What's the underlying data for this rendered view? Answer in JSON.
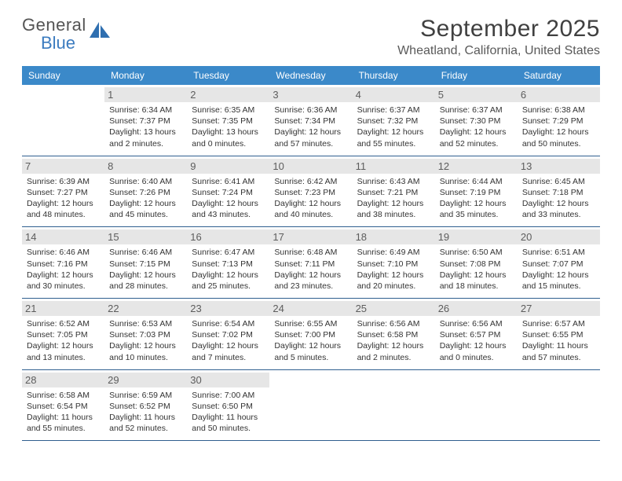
{
  "brand": {
    "line1": "General",
    "line2": "Blue"
  },
  "header": {
    "title": "September 2025",
    "location": "Wheatland, California, United States"
  },
  "theme": {
    "header_bg": "#3b89c9",
    "header_text": "#ffffff",
    "daynum_bg": "#e6e6e6",
    "week_border": "#2f5f8f",
    "sail_color": "#2f6fb0"
  },
  "day_names": [
    "Sunday",
    "Monday",
    "Tuesday",
    "Wednesday",
    "Thursday",
    "Friday",
    "Saturday"
  ],
  "weeks": [
    [
      null,
      {
        "n": "1",
        "sr": "6:34 AM",
        "ss": "7:37 PM",
        "dl": "13 hours and 2 minutes."
      },
      {
        "n": "2",
        "sr": "6:35 AM",
        "ss": "7:35 PM",
        "dl": "13 hours and 0 minutes."
      },
      {
        "n": "3",
        "sr": "6:36 AM",
        "ss": "7:34 PM",
        "dl": "12 hours and 57 minutes."
      },
      {
        "n": "4",
        "sr": "6:37 AM",
        "ss": "7:32 PM",
        "dl": "12 hours and 55 minutes."
      },
      {
        "n": "5",
        "sr": "6:37 AM",
        "ss": "7:30 PM",
        "dl": "12 hours and 52 minutes."
      },
      {
        "n": "6",
        "sr": "6:38 AM",
        "ss": "7:29 PM",
        "dl": "12 hours and 50 minutes."
      }
    ],
    [
      {
        "n": "7",
        "sr": "6:39 AM",
        "ss": "7:27 PM",
        "dl": "12 hours and 48 minutes."
      },
      {
        "n": "8",
        "sr": "6:40 AM",
        "ss": "7:26 PM",
        "dl": "12 hours and 45 minutes."
      },
      {
        "n": "9",
        "sr": "6:41 AM",
        "ss": "7:24 PM",
        "dl": "12 hours and 43 minutes."
      },
      {
        "n": "10",
        "sr": "6:42 AM",
        "ss": "7:23 PM",
        "dl": "12 hours and 40 minutes."
      },
      {
        "n": "11",
        "sr": "6:43 AM",
        "ss": "7:21 PM",
        "dl": "12 hours and 38 minutes."
      },
      {
        "n": "12",
        "sr": "6:44 AM",
        "ss": "7:19 PM",
        "dl": "12 hours and 35 minutes."
      },
      {
        "n": "13",
        "sr": "6:45 AM",
        "ss": "7:18 PM",
        "dl": "12 hours and 33 minutes."
      }
    ],
    [
      {
        "n": "14",
        "sr": "6:46 AM",
        "ss": "7:16 PM",
        "dl": "12 hours and 30 minutes."
      },
      {
        "n": "15",
        "sr": "6:46 AM",
        "ss": "7:15 PM",
        "dl": "12 hours and 28 minutes."
      },
      {
        "n": "16",
        "sr": "6:47 AM",
        "ss": "7:13 PM",
        "dl": "12 hours and 25 minutes."
      },
      {
        "n": "17",
        "sr": "6:48 AM",
        "ss": "7:11 PM",
        "dl": "12 hours and 23 minutes."
      },
      {
        "n": "18",
        "sr": "6:49 AM",
        "ss": "7:10 PM",
        "dl": "12 hours and 20 minutes."
      },
      {
        "n": "19",
        "sr": "6:50 AM",
        "ss": "7:08 PM",
        "dl": "12 hours and 18 minutes."
      },
      {
        "n": "20",
        "sr": "6:51 AM",
        "ss": "7:07 PM",
        "dl": "12 hours and 15 minutes."
      }
    ],
    [
      {
        "n": "21",
        "sr": "6:52 AM",
        "ss": "7:05 PM",
        "dl": "12 hours and 13 minutes."
      },
      {
        "n": "22",
        "sr": "6:53 AM",
        "ss": "7:03 PM",
        "dl": "12 hours and 10 minutes."
      },
      {
        "n": "23",
        "sr": "6:54 AM",
        "ss": "7:02 PM",
        "dl": "12 hours and 7 minutes."
      },
      {
        "n": "24",
        "sr": "6:55 AM",
        "ss": "7:00 PM",
        "dl": "12 hours and 5 minutes."
      },
      {
        "n": "25",
        "sr": "6:56 AM",
        "ss": "6:58 PM",
        "dl": "12 hours and 2 minutes."
      },
      {
        "n": "26",
        "sr": "6:56 AM",
        "ss": "6:57 PM",
        "dl": "12 hours and 0 minutes."
      },
      {
        "n": "27",
        "sr": "6:57 AM",
        "ss": "6:55 PM",
        "dl": "11 hours and 57 minutes."
      }
    ],
    [
      {
        "n": "28",
        "sr": "6:58 AM",
        "ss": "6:54 PM",
        "dl": "11 hours and 55 minutes."
      },
      {
        "n": "29",
        "sr": "6:59 AM",
        "ss": "6:52 PM",
        "dl": "11 hours and 52 minutes."
      },
      {
        "n": "30",
        "sr": "7:00 AM",
        "ss": "6:50 PM",
        "dl": "11 hours and 50 minutes."
      },
      null,
      null,
      null,
      null
    ]
  ],
  "labels": {
    "sunrise": "Sunrise:",
    "sunset": "Sunset:",
    "daylight": "Daylight:"
  }
}
